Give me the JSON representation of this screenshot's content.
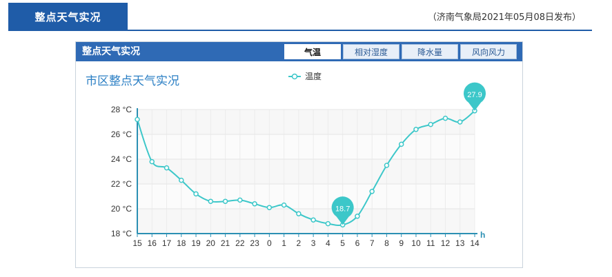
{
  "header": {
    "title": "整点天气实况",
    "publish_info": "（济南气象局2021年05月08日发布）"
  },
  "panel": {
    "title": "整点天气实况",
    "tabs": [
      {
        "label": "气温",
        "active": true
      },
      {
        "label": "相对湿度",
        "active": false
      },
      {
        "label": "降水量",
        "active": false
      },
      {
        "label": "风向风力",
        "active": false
      }
    ]
  },
  "chart_data": {
    "type": "line",
    "title": "市区整点天气实况",
    "xlabel": "h",
    "ylabel": "",
    "y_ticks": [
      "18 °C",
      "20 °C",
      "22 °C",
      "24 °C",
      "26 °C",
      "28 °C"
    ],
    "ylim": [
      18,
      28
    ],
    "categories": [
      "15",
      "16",
      "17",
      "18",
      "19",
      "20",
      "21",
      "22",
      "23",
      "0",
      "1",
      "2",
      "3",
      "4",
      "5",
      "6",
      "7",
      "8",
      "9",
      "10",
      "11",
      "12",
      "13",
      "14"
    ],
    "series": [
      {
        "name": "温度",
        "color": "#3cc7c9",
        "values": [
          27.2,
          23.8,
          23.3,
          22.3,
          21.2,
          20.6,
          20.6,
          20.7,
          20.4,
          20.1,
          20.3,
          19.6,
          19.1,
          18.8,
          18.7,
          19.4,
          21.4,
          23.5,
          25.2,
          26.4,
          26.8,
          27.3,
          27.0,
          27.9
        ]
      }
    ],
    "annotations": [
      {
        "label": "18.7",
        "category": "5",
        "value": 18.7
      },
      {
        "label": "27.9",
        "category": "14",
        "value": 27.9
      }
    ],
    "grid": true,
    "legend": "top-center"
  }
}
